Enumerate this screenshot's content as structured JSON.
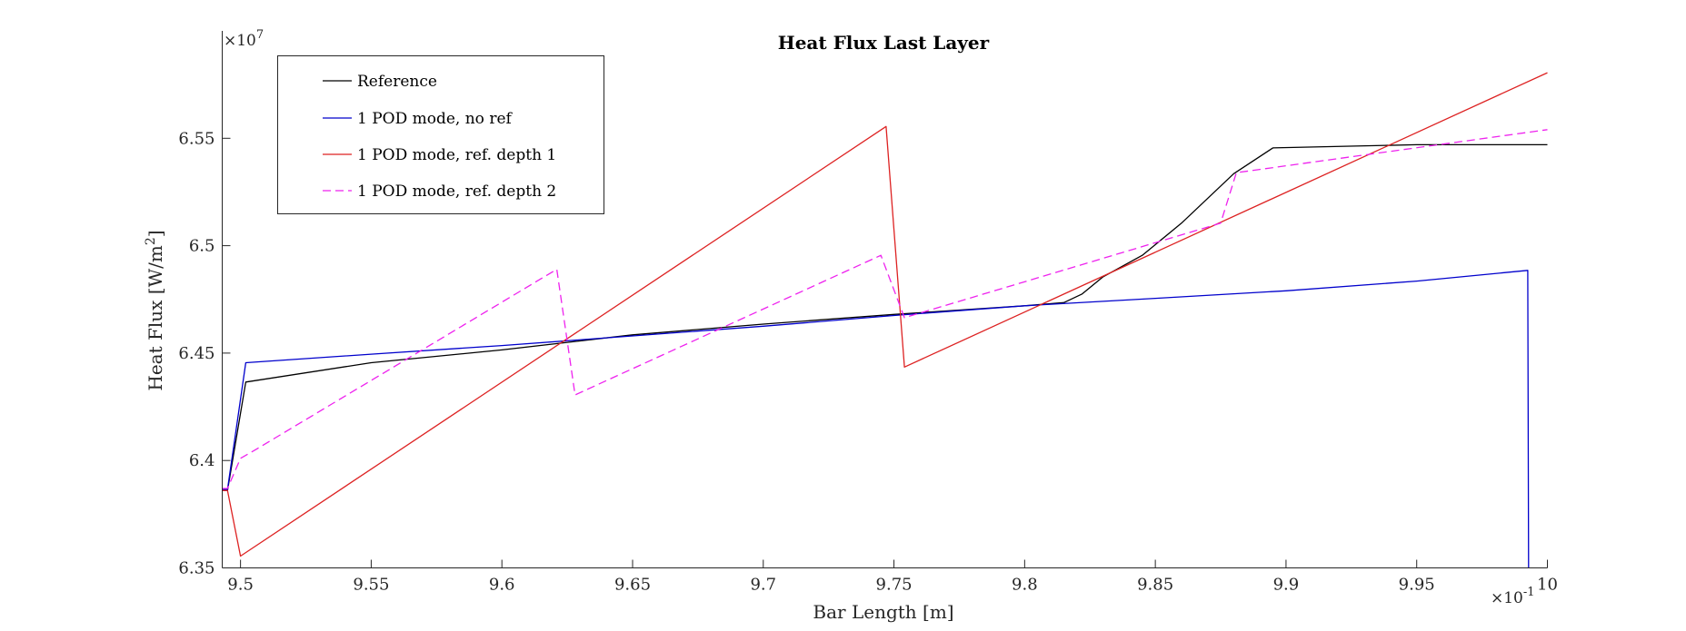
{
  "chart_data": {
    "type": "line",
    "title": "Heat Flux Last Layer",
    "xlabel": "Bar Length [m]",
    "ylabel": "Heat Flux [W/m",
    "ylabel_sup": "2",
    "ylabel_end": "]",
    "x_exponent_base": "×10",
    "x_exponent_power": "-1",
    "y_exponent_base": "×10",
    "y_exponent_power": "7",
    "xlim": [
      9.493,
      10.0
    ],
    "ylim": [
      6.35,
      6.6
    ],
    "xticks": [
      9.5,
      9.55,
      9.6,
      9.65,
      9.7,
      9.75,
      9.8,
      9.85,
      9.9,
      9.95,
      10
    ],
    "xtick_labels": [
      "9.5",
      "9.55",
      "9.6",
      "9.65",
      "9.7",
      "9.75",
      "9.8",
      "9.85",
      "9.9",
      "9.95",
      "10"
    ],
    "yticks": [
      6.35,
      6.4,
      6.45,
      6.5,
      6.55
    ],
    "ytick_labels": [
      "6.35",
      "6.4",
      "6.45",
      "6.5",
      "6.55"
    ],
    "grid": false,
    "legend_position": "top-left",
    "series": [
      {
        "name": "Reference",
        "color": "#000000",
        "dash": "solid",
        "x": [
          9.493,
          9.495,
          9.502,
          9.55,
          9.6,
          9.65,
          9.7,
          9.75,
          9.8,
          9.815,
          9.822,
          9.83,
          9.845,
          9.86,
          9.88,
          9.895,
          9.95,
          10.0
        ],
        "y": [
          6.386,
          6.386,
          6.4365,
          6.4455,
          6.4515,
          6.4585,
          6.4635,
          6.468,
          6.472,
          6.4735,
          6.4775,
          6.4855,
          6.4955,
          6.5105,
          6.5335,
          6.5455,
          6.547,
          6.547
        ]
      },
      {
        "name": "1 POD mode, no ref",
        "color": "#0000cc",
        "dash": "solid",
        "x": [
          9.493,
          9.495,
          9.502,
          9.55,
          9.6,
          9.65,
          9.7,
          9.75,
          9.8,
          9.85,
          9.9,
          9.95,
          9.9925,
          9.9928
        ],
        "y": [
          6.3865,
          6.3865,
          6.4455,
          6.4495,
          6.4535,
          6.458,
          6.4625,
          6.4675,
          6.472,
          6.4755,
          6.479,
          6.4835,
          6.4885,
          6.35
        ]
      },
      {
        "name": "1 POD mode, ref. depth 1",
        "color": "#dd2222",
        "dash": "solid",
        "x": [
          9.493,
          9.495,
          9.5,
          9.747,
          9.754,
          10.0
        ],
        "y": [
          6.386,
          6.386,
          6.3555,
          6.5555,
          6.4435,
          6.5805
        ]
      },
      {
        "name": "1 POD mode, ref. depth 2",
        "color": "#ee22ee",
        "dash": "dashed",
        "x": [
          9.493,
          9.495,
          9.5,
          9.505,
          9.621,
          9.628,
          9.745,
          9.754,
          9.875,
          9.881,
          10.0
        ],
        "y": [
          6.387,
          6.387,
          6.401,
          6.4045,
          6.489,
          6.4305,
          6.4955,
          6.4665,
          6.5105,
          6.534,
          6.554
        ]
      }
    ]
  }
}
